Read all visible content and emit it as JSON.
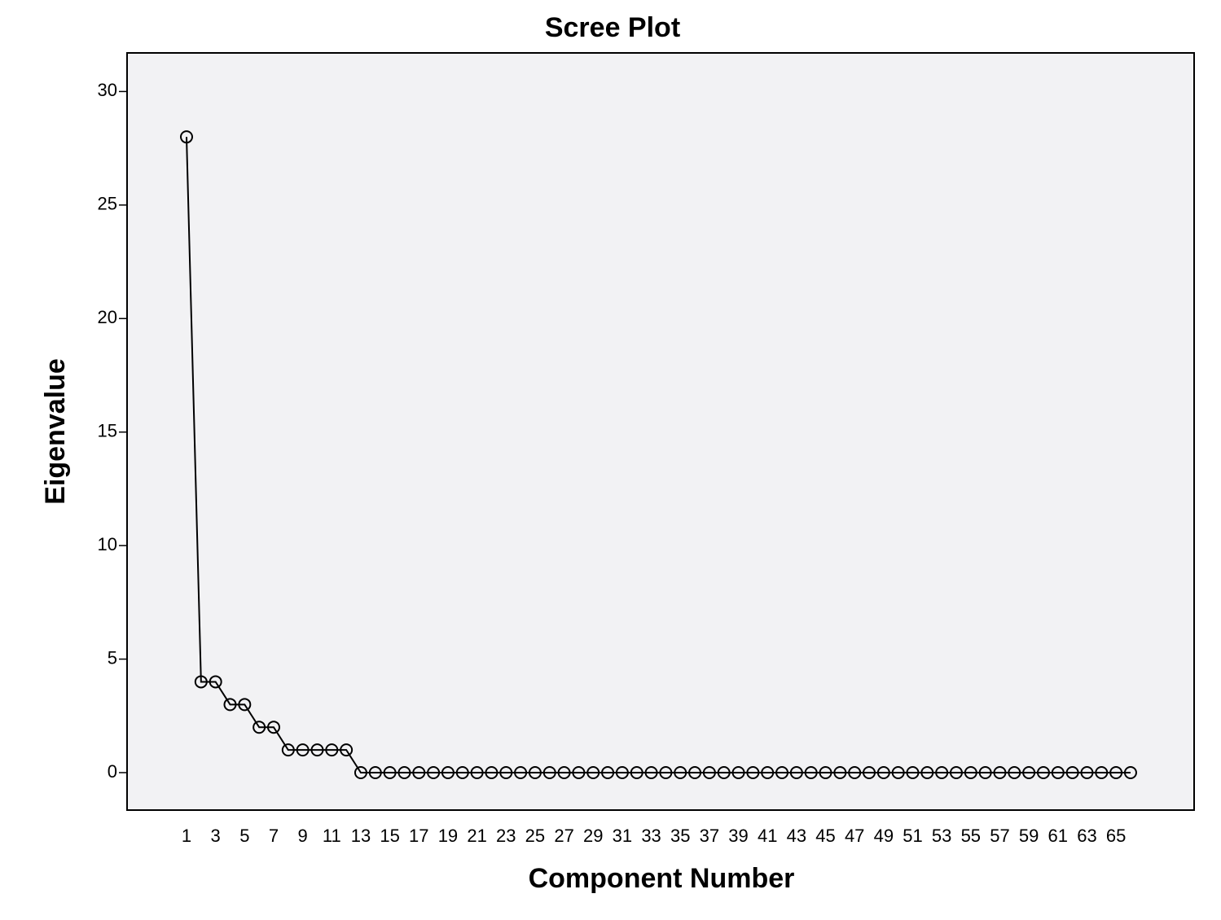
{
  "chart_data": {
    "type": "line",
    "title": "Scree Plot",
    "x_label": "Component Number",
    "y_label": "Eigenvalue",
    "categories": [
      "1",
      null,
      "3",
      null,
      "5",
      null,
      "7",
      null,
      "9",
      null,
      "11",
      null,
      "13",
      null,
      "15",
      null,
      "17",
      null,
      "19",
      null,
      "21",
      null,
      "23",
      null,
      "25",
      null,
      "27",
      null,
      "29",
      null,
      "31",
      null,
      "33",
      null,
      "35",
      null,
      "37",
      null,
      "39",
      null,
      "41",
      null,
      "43",
      null,
      "45",
      null,
      "47",
      null,
      "49",
      null,
      "51",
      null,
      "53",
      null,
      "55",
      null,
      "57",
      null,
      "59",
      null,
      "61",
      null,
      "63",
      null,
      "65",
      null
    ],
    "values": [
      28,
      4,
      4,
      3,
      3,
      2,
      2,
      1,
      1,
      1,
      1,
      1,
      0,
      0,
      0,
      0,
      0,
      0,
      0,
      0,
      0,
      0,
      0,
      0,
      0,
      0,
      0,
      0,
      0,
      0,
      0,
      0,
      0,
      0,
      0,
      0,
      0,
      0,
      0,
      0,
      0,
      0,
      0,
      0,
      0,
      0,
      0,
      0,
      0,
      0,
      0,
      0,
      0,
      0,
      0,
      0,
      0,
      0,
      0,
      0,
      0,
      0,
      0,
      0,
      0,
      0
    ],
    "color": "#000000",
    "ylim": [
      -1.65,
      31.7
    ],
    "yticks": [
      0,
      5,
      10,
      15,
      20,
      25,
      30
    ]
  }
}
